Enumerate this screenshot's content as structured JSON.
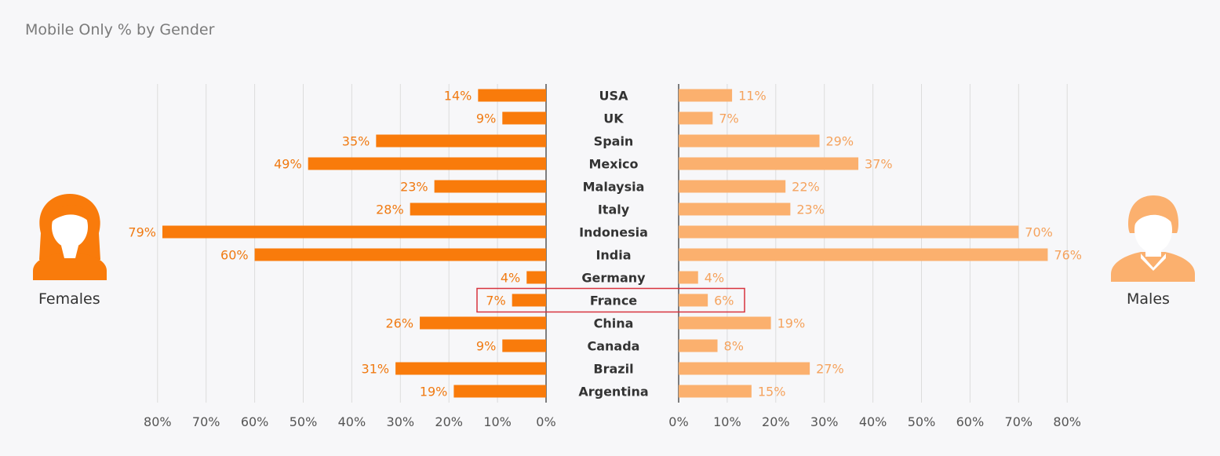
{
  "title": "Mobile Only % by Gender",
  "labels": {
    "females": "Females",
    "males": "Males"
  },
  "icons": {
    "female": "female-person-icon",
    "male": "male-person-icon"
  },
  "colors": {
    "female_bar": "#f97b0b",
    "male_bar": "#fbb06e",
    "female_text": "#f07a12",
    "male_text": "#f5a35e",
    "highlight": "#d7333d",
    "grid": "#dcdcdc",
    "axis": "#555555"
  },
  "chart_data": {
    "type": "bar",
    "title": "Mobile Only % by Gender",
    "categories": [
      "USA",
      "UK",
      "Spain",
      "Mexico",
      "Malaysia",
      "Italy",
      "Indonesia",
      "India",
      "Germany",
      "France",
      "China",
      "Canada",
      "Brazil",
      "Argentina"
    ],
    "series": [
      {
        "name": "Females",
        "values": [
          14,
          9,
          35,
          49,
          23,
          28,
          79,
          60,
          4,
          7,
          26,
          9,
          31,
          19
        ]
      },
      {
        "name": "Males",
        "values": [
          11,
          7,
          29,
          37,
          22,
          23,
          70,
          76,
          4,
          6,
          19,
          8,
          27,
          15
        ]
      }
    ],
    "xlim": [
      0,
      80
    ],
    "ticks": [
      "0%",
      "10%",
      "20%",
      "30%",
      "40%",
      "50%",
      "60%",
      "70%",
      "80%"
    ],
    "highlighted_category": "France",
    "grid": true
  }
}
